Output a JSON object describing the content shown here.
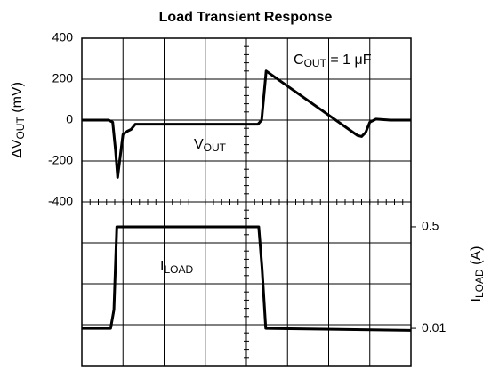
{
  "chart_data": {
    "type": "line",
    "title": "Load Transient Response",
    "ylabel": [
      "ΔV",
      "OUT",
      " (mV)"
    ],
    "y2label": [
      "I",
      "LOAD",
      " (A)"
    ],
    "annotation": [
      "C",
      "OUT",
      " = 1 μF"
    ],
    "xlim": [
      0,
      8
    ],
    "ylim": [
      -400,
      400
    ],
    "yticks": [
      400,
      200,
      0,
      -200,
      -400
    ],
    "y2lim": [
      -0.17,
      0.62
    ],
    "y2ticks": [
      0.5,
      0.01
    ],
    "series": [
      {
        "name": [
          "V",
          "OUT"
        ],
        "color": "#000000",
        "x": [
          0,
          0.65,
          0.75,
          0.82,
          0.87,
          0.95,
          1.0,
          1.1,
          1.2,
          1.3,
          1.7,
          4.28,
          4.37,
          4.48,
          6.7,
          6.8,
          6.9,
          7.0,
          7.15,
          7.5,
          8
        ],
        "values": [
          0,
          0,
          -10,
          -150,
          -280,
          -150,
          -70,
          -55,
          -45,
          -20,
          -20,
          -20,
          0,
          240,
          -75,
          -80,
          -60,
          -10,
          5,
          0,
          0
        ]
      },
      {
        "name": [
          "I",
          "LOAD"
        ],
        "color": "#000000",
        "axis": "y2",
        "x": [
          0,
          0.7,
          0.78,
          0.85,
          4.3,
          4.38,
          4.47,
          8
        ],
        "values": [
          0.01,
          0.01,
          0.1,
          0.5,
          0.5,
          0.3,
          0.01,
          0.0
        ]
      }
    ]
  }
}
